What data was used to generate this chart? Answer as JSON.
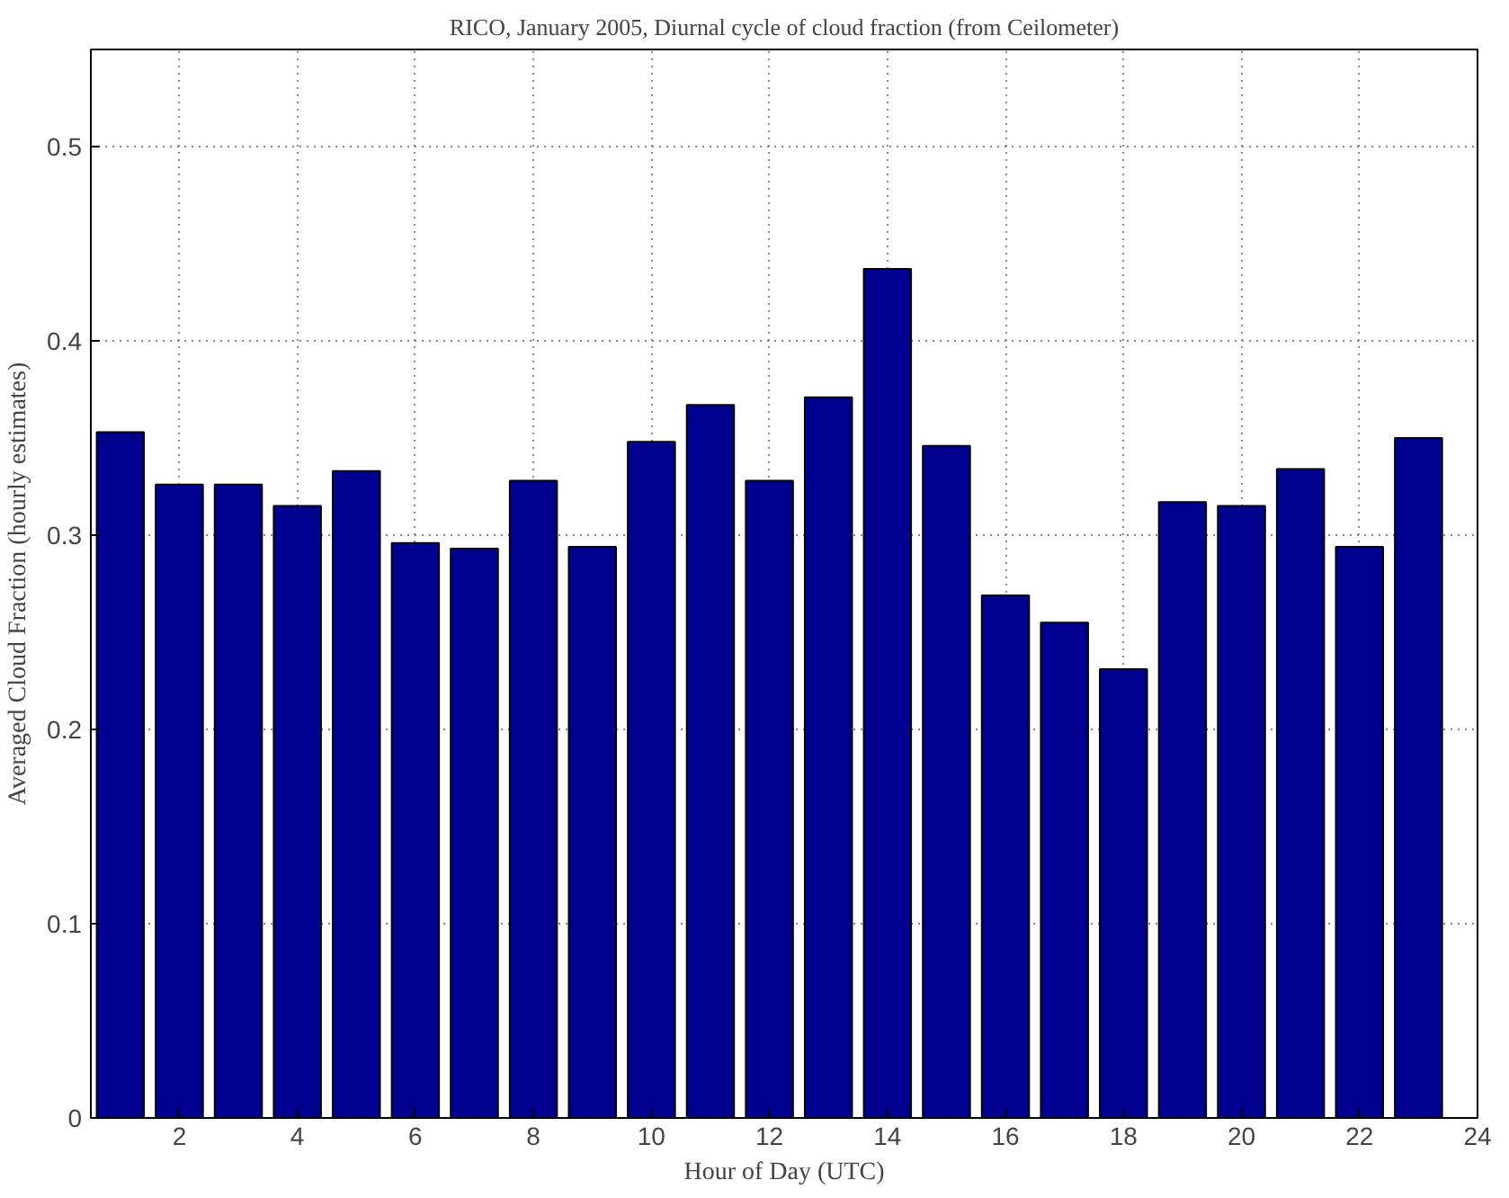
{
  "chart_data": {
    "type": "bar",
    "title": "RICO, January 2005, Diurnal cycle of cloud fraction (from Ceilometer)",
    "xlabel": "Hour of Day (UTC)",
    "ylabel": "Averaged Cloud Fraction (hourly estimates)",
    "x": [
      1,
      2,
      3,
      4,
      5,
      6,
      7,
      8,
      9,
      10,
      11,
      12,
      13,
      14,
      15,
      16,
      17,
      18,
      19,
      20,
      21,
      22,
      23
    ],
    "values": [
      0.353,
      0.326,
      0.326,
      0.315,
      0.333,
      0.296,
      0.293,
      0.328,
      0.294,
      0.348,
      0.367,
      0.328,
      0.371,
      0.437,
      0.346,
      0.269,
      0.255,
      0.231,
      0.317,
      0.315,
      0.334,
      0.294,
      0.35
    ],
    "color": "#00008f",
    "xlim": [
      0.5,
      24
    ],
    "ylim": [
      0,
      0.55
    ],
    "xticks": [
      2,
      4,
      6,
      8,
      10,
      12,
      14,
      16,
      18,
      20,
      22,
      24
    ],
    "yticks": [
      0,
      0.1,
      0.2,
      0.3,
      0.4,
      0.5
    ],
    "grid": true
  }
}
